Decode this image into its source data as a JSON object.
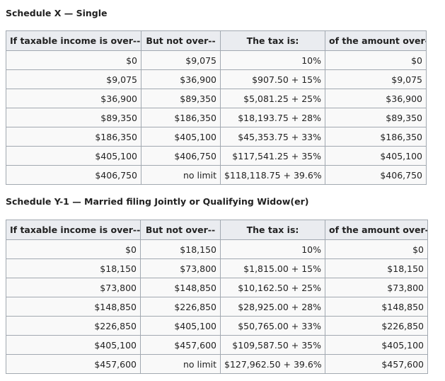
{
  "schedule_x": {
    "caption": "Schedule X — Single",
    "headers": [
      "If taxable income is over--",
      "But not over--",
      "The tax is:",
      "of the amount over--"
    ],
    "rows": [
      [
        "$0",
        "$9,075",
        "10%",
        "$0"
      ],
      [
        "$9,075",
        "$36,900",
        "$907.50 + 15%",
        "$9,075"
      ],
      [
        "$36,900",
        "$89,350",
        "$5,081.25 + 25%",
        "$36,900"
      ],
      [
        "$89,350",
        "$186,350",
        "$18,193.75 + 28%",
        "$89,350"
      ],
      [
        "$186,350",
        "$405,100",
        "$45,353.75 + 33%",
        "$186,350"
      ],
      [
        "$405,100",
        "$406,750",
        "$117,541.25 + 35%",
        "$405,100"
      ],
      [
        "$406,750",
        "no limit",
        "$118,118.75 + 39.6%",
        "$406,750"
      ]
    ]
  },
  "schedule_y1": {
    "caption": "Schedule Y-1 — Married filing Jointly or Qualifying Widow(er)",
    "headers": [
      "If taxable income is over--",
      "But not over--",
      "The tax is:",
      "of the amount over--"
    ],
    "rows": [
      [
        "$0",
        "$18,150",
        "10%",
        "$0"
      ],
      [
        "$18,150",
        "$73,800",
        "$1,815.00 + 15%",
        "$18,150"
      ],
      [
        "$73,800",
        "$148,850",
        "$10,162.50 + 25%",
        "$73,800"
      ],
      [
        "$148,850",
        "$226,850",
        "$28,925.00 + 28%",
        "$148,850"
      ],
      [
        "$226,850",
        "$405,100",
        "$50,765.00 + 33%",
        "$226,850"
      ],
      [
        "$405,100",
        "$457,600",
        "$109,587.50 + 35%",
        "$405,100"
      ],
      [
        "$457,600",
        "no limit",
        "$127,962.50 + 39.6%",
        "$457,600"
      ]
    ]
  }
}
